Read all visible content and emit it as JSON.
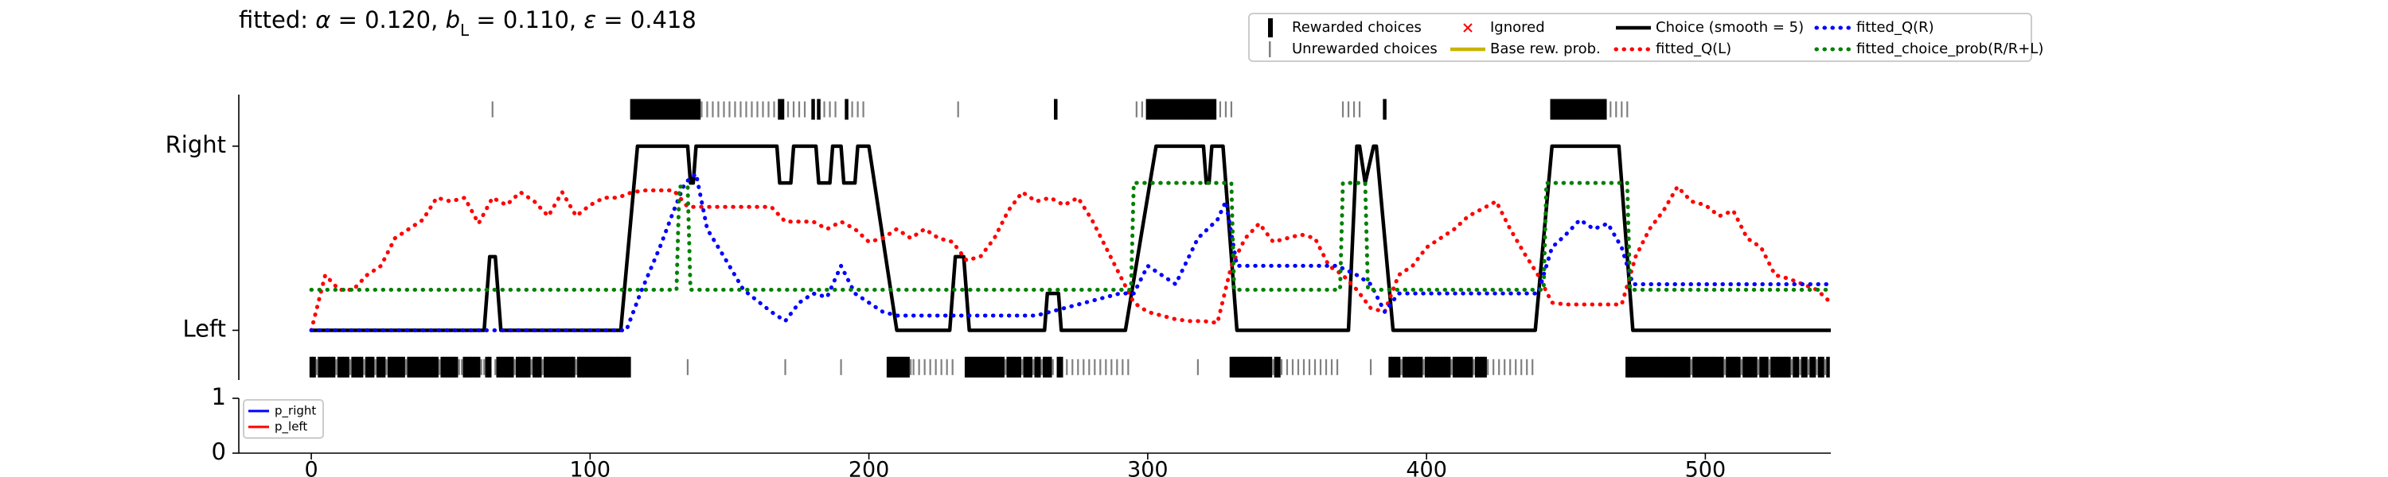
{
  "chart_data": [
    {
      "type": "choice_history",
      "title": [
        {
          "text": "fitted: "
        },
        {
          "text": "α",
          "style": "italic"
        },
        {
          "text": " = 0.120, "
        },
        {
          "text": "b",
          "style": "italic"
        },
        {
          "text": "L",
          "style": "sub"
        },
        {
          "text": " = 0.110, "
        },
        {
          "text": "ε",
          "style": "italic"
        },
        {
          "text": " = 0.418"
        }
      ],
      "xlim": [
        -26,
        545
      ],
      "ylim": [
        -0.27,
        1.28
      ],
      "yticks": [
        {
          "value": 0,
          "label": "Left"
        },
        {
          "value": 1,
          "label": "Right"
        }
      ],
      "legend_items": [
        {
          "name": "Rewarded choices",
          "color": "#000000",
          "marker": "thick-bar",
          "right": [
            115,
            116,
            117,
            118,
            119,
            120,
            121,
            122,
            123,
            124,
            125,
            126,
            127,
            128,
            129,
            130,
            131,
            132,
            133,
            134,
            135,
            136,
            137,
            138,
            139,
            168,
            169,
            180,
            182,
            192,
            267,
            300,
            301,
            302,
            303,
            304,
            305,
            306,
            307,
            308,
            309,
            310,
            311,
            312,
            313,
            314,
            315,
            316,
            317,
            318,
            319,
            320,
            321,
            322,
            323,
            324,
            385,
            445,
            446,
            447,
            448,
            449,
            450,
            451,
            452,
            453,
            454,
            455,
            456,
            457,
            458,
            459,
            460,
            461,
            462,
            463,
            464
          ],
          "left": [
            0,
            1,
            3,
            4,
            5,
            6,
            7,
            8,
            10,
            11,
            12,
            13,
            15,
            16,
            17,
            18,
            20,
            21,
            22,
            24,
            25,
            26,
            28,
            29,
            30,
            31,
            32,
            33,
            35,
            36,
            37,
            38,
            39,
            40,
            41,
            42,
            43,
            44,
            45,
            47,
            48,
            49,
            50,
            51,
            52,
            55,
            56,
            57,
            58,
            59,
            60,
            63,
            64,
            67,
            68,
            69,
            70,
            71,
            72,
            74,
            75,
            76,
            77,
            78,
            80,
            81,
            82,
            84,
            85,
            86,
            87,
            88,
            89,
            90,
            91,
            92,
            93,
            94,
            96,
            97,
            98,
            99,
            100,
            101,
            102,
            103,
            104,
            105,
            106,
            107,
            108,
            109,
            110,
            111,
            112,
            113,
            114,
            207,
            208,
            209,
            210,
            211,
            212,
            213,
            214,
            235,
            236,
            237,
            238,
            239,
            240,
            241,
            242,
            243,
            244,
            245,
            246,
            247,
            248,
            250,
            251,
            252,
            253,
            254,
            256,
            257,
            258,
            260,
            261,
            263,
            264,
            265,
            268,
            269,
            330,
            331,
            332,
            333,
            334,
            335,
            336,
            337,
            338,
            339,
            340,
            341,
            342,
            343,
            344,
            346,
            347,
            387,
            388,
            389,
            390,
            392,
            393,
            394,
            395,
            396,
            397,
            398,
            400,
            401,
            402,
            403,
            404,
            405,
            406,
            407,
            408,
            410,
            411,
            412,
            413,
            414,
            415,
            416,
            418,
            419,
            420,
            421,
            472,
            473,
            474,
            475,
            476,
            477,
            478,
            479,
            480,
            481,
            482,
            483,
            484,
            485,
            486,
            487,
            488,
            489,
            490,
            491,
            492,
            493,
            494,
            496,
            497,
            498,
            499,
            500,
            501,
            502,
            503,
            504,
            505,
            506,
            508,
            509,
            510,
            511,
            512,
            514,
            515,
            516,
            517,
            518,
            520,
            521,
            522,
            524,
            525,
            526,
            527,
            528,
            529,
            530,
            532,
            533,
            535,
            536,
            538,
            539,
            541,
            542,
            544
          ]
        },
        {
          "name": "Unrewarded choices",
          "color": "#808080",
          "marker": "thin-bar",
          "right": [
            65,
            140,
            142,
            144,
            146,
            148,
            150,
            152,
            154,
            156,
            158,
            160,
            162,
            164,
            166,
            171,
            173,
            175,
            177,
            184,
            186,
            188,
            194,
            196,
            198,
            232,
            296,
            298,
            326,
            328,
            330,
            370,
            372,
            374,
            376,
            466,
            468,
            470,
            472
          ],
          "left": [
            2,
            9,
            14,
            19,
            23,
            27,
            34,
            46,
            53,
            54,
            61,
            62,
            66,
            73,
            79,
            83,
            95,
            135,
            170,
            190,
            215,
            216,
            218,
            220,
            222,
            224,
            226,
            228,
            230,
            249,
            255,
            259,
            262,
            266,
            271,
            273,
            275,
            277,
            279,
            281,
            283,
            285,
            287,
            289,
            291,
            293,
            318,
            345,
            348,
            350,
            352,
            354,
            356,
            358,
            360,
            362,
            364,
            366,
            368,
            380,
            391,
            399,
            409,
            417,
            422,
            424,
            426,
            428,
            430,
            432,
            434,
            436,
            438,
            495,
            507,
            513,
            519,
            523,
            531,
            534,
            537,
            540,
            543
          ]
        },
        {
          "name": "Ignored",
          "color": "#ff0000",
          "marker": "x"
        },
        {
          "name": "Base rew. prob.",
          "color": "#c8b400",
          "marker": "line"
        }
      ],
      "series": [
        {
          "name": "Choice (smooth = 5)",
          "color": "#000000",
          "style": "solid",
          "x": [
            0,
            62,
            64,
            66,
            68,
            111,
            117,
            135,
            136,
            137,
            138,
            167,
            168,
            172,
            173,
            181,
            182,
            186,
            187,
            190,
            191,
            195,
            196,
            200,
            210,
            229,
            231,
            234,
            236,
            263,
            264,
            268,
            269,
            292,
            303,
            320,
            321,
            322,
            323,
            327,
            332,
            372,
            375,
            376,
            378,
            381,
            382,
            388,
            439,
            445,
            469,
            474,
            545
          ],
          "values": [
            0,
            0,
            0.4,
            0.4,
            0,
            0,
            1,
            1,
            0.8,
            0.8,
            1,
            1,
            0.8,
            0.8,
            1,
            1,
            0.8,
            0.8,
            1,
            1,
            0.8,
            0.8,
            1,
            1,
            0,
            0,
            0.4,
            0.4,
            0,
            0,
            0.2,
            0.2,
            0,
            0,
            1,
            1,
            0.8,
            0.8,
            1,
            1,
            0,
            0,
            1,
            1,
            0.8,
            1,
            1,
            0,
            0,
            1,
            1,
            0,
            0
          ]
        },
        {
          "name": "fitted_Q(L)",
          "color": "#ff0000",
          "style": "dotted",
          "x": [
            0,
            5,
            10,
            15,
            20,
            25,
            30,
            35,
            40,
            45,
            50,
            55,
            60,
            65,
            70,
            75,
            80,
            85,
            90,
            95,
            100,
            105,
            110,
            115,
            120,
            125,
            130,
            135,
            140,
            145,
            150,
            155,
            160,
            165,
            170,
            175,
            180,
            185,
            190,
            195,
            200,
            205,
            210,
            215,
            220,
            225,
            230,
            235,
            240,
            245,
            250,
            255,
            260,
            265,
            270,
            275,
            280,
            285,
            290,
            295,
            300,
            305,
            310,
            315,
            320,
            325,
            330,
            335,
            340,
            345,
            350,
            355,
            360,
            365,
            370,
            375,
            380,
            385,
            390,
            395,
            400,
            405,
            410,
            415,
            420,
            425,
            430,
            435,
            440,
            445,
            450,
            455,
            460,
            465,
            470,
            475,
            480,
            485,
            490,
            495,
            500,
            505,
            510,
            515,
            520,
            525,
            530,
            535,
            540,
            545
          ],
          "values": [
            0,
            0.3,
            0.22,
            0.22,
            0.3,
            0.35,
            0.5,
            0.55,
            0.6,
            0.72,
            0.7,
            0.72,
            0.58,
            0.72,
            0.68,
            0.75,
            0.7,
            0.62,
            0.75,
            0.62,
            0.68,
            0.72,
            0.72,
            0.75,
            0.76,
            0.76,
            0.76,
            0.67,
            0.67,
            0.67,
            0.67,
            0.67,
            0.67,
            0.67,
            0.59,
            0.59,
            0.59,
            0.55,
            0.59,
            0.55,
            0.48,
            0.5,
            0.55,
            0.5,
            0.55,
            0.5,
            0.48,
            0.38,
            0.4,
            0.5,
            0.65,
            0.75,
            0.7,
            0.72,
            0.68,
            0.72,
            0.6,
            0.45,
            0.3,
            0.15,
            0.1,
            0.08,
            0.06,
            0.05,
            0.05,
            0.04,
            0.35,
            0.5,
            0.58,
            0.48,
            0.5,
            0.52,
            0.5,
            0.35,
            0.3,
            0.22,
            0.12,
            0.1,
            0.3,
            0.35,
            0.45,
            0.5,
            0.55,
            0.62,
            0.66,
            0.7,
            0.55,
            0.42,
            0.3,
            0.15,
            0.14,
            0.14,
            0.14,
            0.14,
            0.14,
            0.4,
            0.55,
            0.65,
            0.78,
            0.7,
            0.68,
            0.62,
            0.65,
            0.5,
            0.45,
            0.3,
            0.28,
            0.25,
            0.22,
            0.15
          ]
        },
        {
          "name": "fitted_Q(R)",
          "color": "#0000ff",
          "style": "dotted",
          "x": [
            0,
            113,
            118,
            125,
            130,
            134,
            138,
            142,
            148,
            155,
            165,
            170,
            175,
            180,
            185,
            190,
            195,
            200,
            205,
            210,
            230,
            260,
            290,
            295,
            300,
            305,
            310,
            318,
            325,
            328,
            332,
            368,
            375,
            380,
            385,
            390,
            440,
            445,
            450,
            455,
            460,
            465,
            470,
            474,
            545
          ],
          "values": [
            0,
            0,
            0.2,
            0.45,
            0.65,
            0.8,
            0.85,
            0.55,
            0.4,
            0.22,
            0.1,
            0.05,
            0.15,
            0.2,
            0.18,
            0.35,
            0.2,
            0.15,
            0.1,
            0.08,
            0.08,
            0.08,
            0.2,
            0.2,
            0.35,
            0.3,
            0.25,
            0.5,
            0.6,
            0.7,
            0.35,
            0.35,
            0.3,
            0.25,
            0.1,
            0.2,
            0.2,
            0.45,
            0.52,
            0.6,
            0.55,
            0.58,
            0.45,
            0.25,
            0.25
          ]
        },
        {
          "name": "fitted_choice_prob(R/R+L)",
          "color": "#008000",
          "style": "dotted",
          "x": [
            0,
            131,
            132,
            135,
            136,
            294,
            295,
            330,
            331,
            369,
            370,
            378,
            379,
            442,
            443,
            472,
            473,
            545
          ],
          "values": [
            0.22,
            0.22,
            0.78,
            0.78,
            0.22,
            0.22,
            0.8,
            0.8,
            0.22,
            0.22,
            0.8,
            0.8,
            0.22,
            0.22,
            0.8,
            0.8,
            0.22,
            0.22
          ]
        }
      ]
    },
    {
      "type": "line",
      "xlim": [
        -26,
        545
      ],
      "ylim": [
        0,
        1
      ],
      "yticks": [
        0,
        1
      ],
      "xticks": [
        0,
        100,
        200,
        300,
        400,
        500
      ],
      "series": [
        {
          "name": "p_right",
          "color": "#0000ff"
        },
        {
          "name": "p_left",
          "color": "#ff0000"
        }
      ]
    }
  ]
}
